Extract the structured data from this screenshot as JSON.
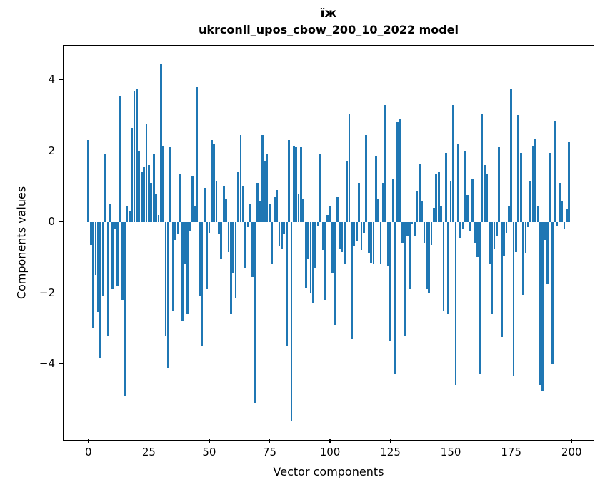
{
  "figure": {
    "title_line1": "їж",
    "title_line2": "ukrconll_upos_cbow_200_10_2022 model",
    "xlabel": "Vector components",
    "ylabel": "Components values",
    "background": "#ffffff",
    "text_color": "#000000"
  },
  "chart_data": {
    "type": "bar",
    "title": "їж",
    "subtitle": "ukrconll_upos_cbow_200_10_2022 model",
    "xlabel": "Vector components",
    "ylabel": "Components values",
    "bar_color": "#1f77b4",
    "n_bars": 200,
    "x_start": 0,
    "x_ticks": [
      0,
      25,
      50,
      75,
      100,
      125,
      150,
      175,
      200
    ],
    "y_ticks": [
      4,
      2,
      0,
      -2,
      -4
    ],
    "xlim": [
      -10.3,
      208.8
    ],
    "ylim": [
      -6.12,
      4.96
    ],
    "grid": false,
    "legend": null,
    "values": [
      2.3,
      -0.65,
      -3.0,
      -1.5,
      -2.55,
      -3.85,
      -2.1,
      1.9,
      -3.2,
      0.5,
      -1.9,
      -0.2,
      -1.8,
      3.55,
      -2.2,
      -4.9,
      0.45,
      0.3,
      2.65,
      3.7,
      3.75,
      2.0,
      1.4,
      1.55,
      2.75,
      1.6,
      1.1,
      1.9,
      0.8,
      0.2,
      4.45,
      2.15,
      -3.2,
      -4.1,
      2.1,
      -2.5,
      -0.5,
      -0.35,
      1.35,
      -2.8,
      -1.2,
      -2.6,
      -0.25,
      1.3,
      0.45,
      3.8,
      -2.1,
      -3.5,
      0.95,
      -1.9,
      -0.3,
      2.3,
      2.2,
      1.15,
      -0.35,
      -1.05,
      1.0,
      0.65,
      -0.85,
      -2.6,
      -1.45,
      -2.15,
      1.4,
      2.45,
      1.0,
      -1.3,
      -0.15,
      0.5,
      -1.55,
      -5.1,
      1.1,
      0.6,
      2.45,
      1.7,
      1.9,
      0.5,
      -1.2,
      0.7,
      0.9,
      -0.7,
      -0.75,
      -0.35,
      -3.5,
      2.3,
      -5.6,
      2.15,
      2.1,
      0.8,
      2.1,
      0.65,
      -1.85,
      -1.05,
      -2.0,
      -2.3,
      -1.3,
      -0.1,
      1.9,
      -0.8,
      -2.2,
      0.2,
      0.45,
      -1.45,
      -2.9,
      0.7,
      -0.75,
      -0.85,
      -1.2,
      1.7,
      3.05,
      -3.3,
      -0.7,
      -0.55,
      1.1,
      -0.8,
      -0.3,
      2.45,
      -0.9,
      -1.15,
      -1.2,
      1.85,
      0.65,
      -1.2,
      1.1,
      3.3,
      -1.25,
      -3.35,
      1.2,
      -4.3,
      2.8,
      2.9,
      -0.6,
      -3.2,
      -0.4,
      -1.9,
      -0.05,
      -0.4,
      0.85,
      1.65,
      0.6,
      -0.6,
      -1.9,
      -2.0,
      -0.65,
      0.4,
      1.35,
      1.4,
      0.45,
      -2.5,
      1.95,
      -2.6,
      1.15,
      3.3,
      -4.6,
      2.2,
      -0.45,
      -0.2,
      2.0,
      0.75,
      -0.25,
      1.2,
      -0.6,
      -1.0,
      -4.3,
      3.05,
      1.6,
      1.35,
      -1.2,
      -2.6,
      -0.75,
      -0.4,
      2.1,
      -3.25,
      -0.95,
      -0.3,
      0.45,
      3.75,
      -4.35,
      -0.85,
      3.0,
      1.95,
      -2.05,
      -0.9,
      -0.15,
      1.15,
      2.15,
      2.35,
      0.45,
      -4.6,
      -4.75,
      -0.5,
      -1.75,
      1.95,
      -4.0,
      2.85,
      -0.1,
      1.1,
      0.6,
      -0.2,
      0.35,
      2.25
    ]
  }
}
